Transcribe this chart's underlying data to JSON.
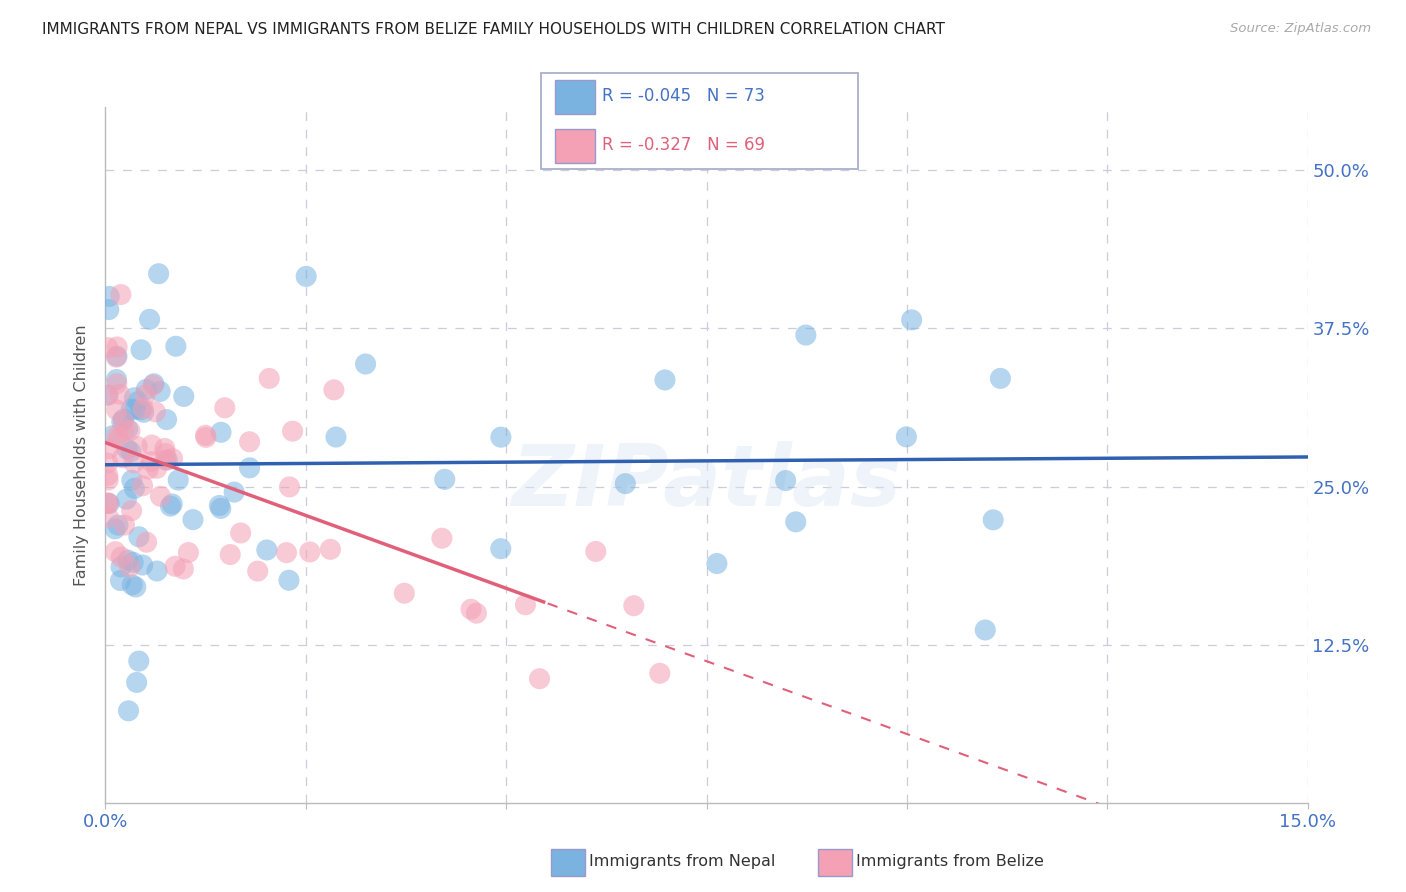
{
  "title": "IMMIGRANTS FROM NEPAL VS IMMIGRANTS FROM BELIZE FAMILY HOUSEHOLDS WITH CHILDREN CORRELATION CHART",
  "source": "Source: ZipAtlas.com",
  "ylabel": "Family Households with Children",
  "nepal_R": -0.045,
  "nepal_N": 73,
  "belize_R": -0.327,
  "belize_N": 69,
  "xlim": [
    0.0,
    0.15
  ],
  "ylim": [
    0.0,
    0.55
  ],
  "xticks": [
    0.0,
    0.025,
    0.05,
    0.075,
    0.1,
    0.125,
    0.15
  ],
  "xticklabels": [
    "0.0%",
    "",
    "",
    "",
    "",
    "",
    "15.0%"
  ],
  "yticks": [
    0.0,
    0.125,
    0.25,
    0.375,
    0.5
  ],
  "yticklabels_right": [
    "",
    "12.5%",
    "25.0%",
    "37.5%",
    "50.0%"
  ],
  "nepal_color": "#7ab3e0",
  "belize_color": "#f4a0b5",
  "nepal_line_color": "#3060b0",
  "belize_line_color": "#e0607a",
  "background_color": "#ffffff",
  "grid_color": "#ccccdd",
  "title_color": "#222222",
  "axis_label_color": "#555555",
  "tick_color": "#4472c4",
  "watermark": "ZIPatlas"
}
